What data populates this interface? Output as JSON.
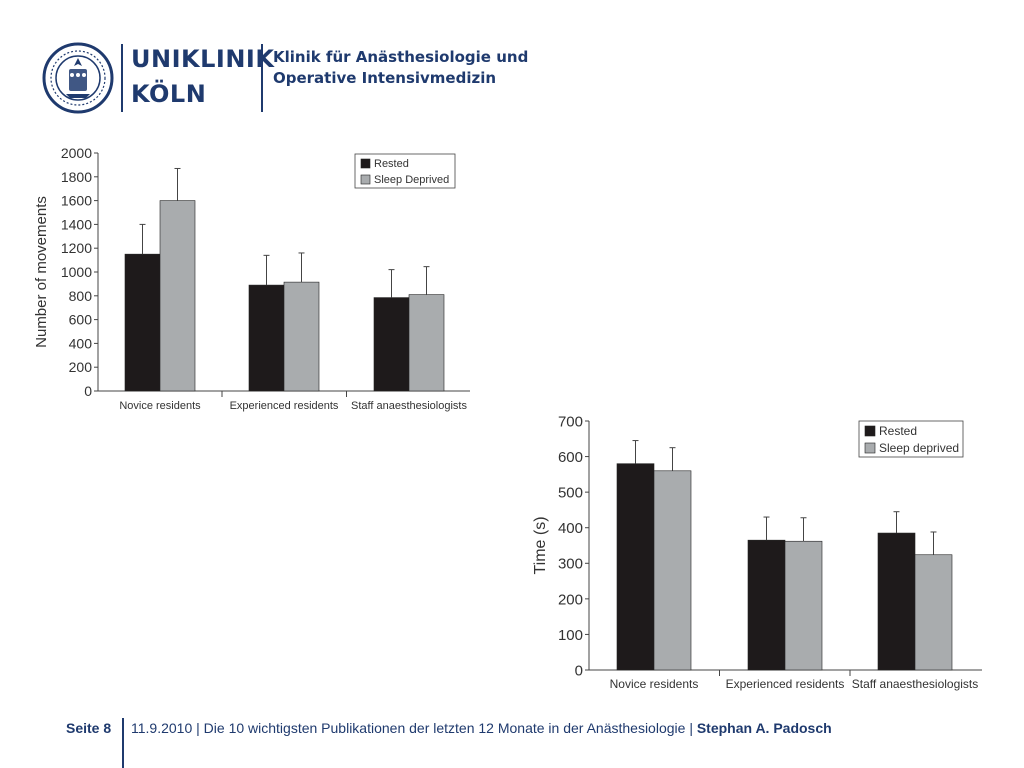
{
  "header": {
    "brand_line1": "UNIKLINIK",
    "brand_line2": "KÖLN",
    "clinic_line1": "Klinik für Anästhesiologie und",
    "clinic_line2": "Operative Intensivmedizin",
    "brand_color": "#1f3a6e"
  },
  "footer": {
    "page": "Seite 8",
    "date": "11.9.2010",
    "separator": "|",
    "title": "Die 10 wichtigsten Publikationen der letzten 12 Monate in der Anästhesiologie",
    "author": "Stephan A. Padosch"
  },
  "chart_data": [
    {
      "type": "bar",
      "ylabel": "Number of movements",
      "ytick_labels": [
        "0",
        "200",
        "400",
        "600",
        "800",
        "1000",
        "1200",
        "1400",
        "1600",
        "1800",
        "2000"
      ],
      "ylim": [
        0,
        2000
      ],
      "categories": [
        "Novice residents",
        "Experienced residents",
        "Staff anaesthesiologists"
      ],
      "series": [
        {
          "name": "Rested",
          "color": "#1e1a1b",
          "values": [
            1150,
            890,
            785
          ],
          "error_upper": [
            1400,
            1140,
            1020
          ]
        },
        {
          "name": "Sleep Deprived",
          "color": "#a9acae",
          "values": [
            1600,
            915,
            810
          ],
          "error_upper": [
            1870,
            1160,
            1045
          ]
        }
      ],
      "legend_position": "top-right",
      "grid": false
    },
    {
      "type": "bar",
      "ylabel": "Time (s)",
      "ytick_labels": [
        "0",
        "100",
        "200",
        "300",
        "400",
        "500",
        "600",
        "700"
      ],
      "ylim": [
        0,
        700
      ],
      "categories": [
        "Novice residents",
        "Experienced residents",
        "Staff anaesthesiologists"
      ],
      "series": [
        {
          "name": "Rested",
          "color": "#1e1a1b",
          "values": [
            580,
            365,
            385
          ],
          "error_upper": [
            645,
            430,
            445
          ]
        },
        {
          "name": "Sleep deprived",
          "color": "#a9acae",
          "values": [
            560,
            362,
            324
          ],
          "error_upper": [
            625,
            428,
            388
          ]
        }
      ],
      "legend_position": "top-right",
      "grid": false
    }
  ]
}
